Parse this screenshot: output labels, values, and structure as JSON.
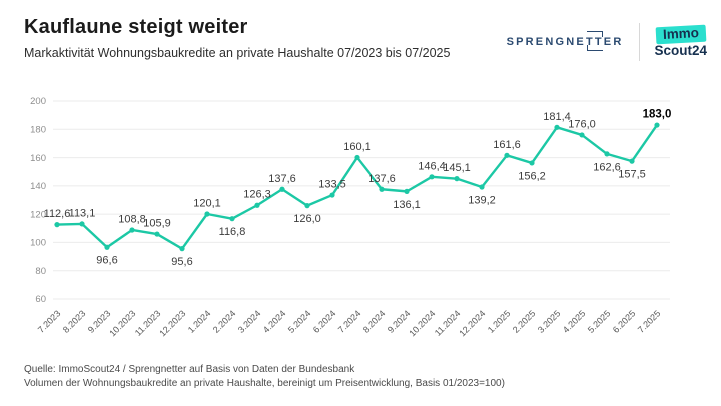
{
  "header": {
    "title": "Kauflaune steigt weiter",
    "subtitle": "Markaktivität Wohnungsbaukredite an private Haushalte 07/2023 bis 07/2025"
  },
  "logos": {
    "sprengnetter": {
      "text_before": "SPRENGNE",
      "text_tt": "TT",
      "text_after": "ER"
    },
    "immoscout": {
      "line1": "Immo",
      "line2": "Scout24"
    }
  },
  "chart_data": {
    "type": "line",
    "title": "Markaktivität Wohnungsbaukredite an private Haushalte 07/2023 bis 07/2025",
    "categories": [
      "7.2023",
      "8.2023",
      "9.2023",
      "10.2023",
      "11.2023",
      "12.2023",
      "1.2024",
      "2.2024",
      "3.2024",
      "4.2024",
      "5.2024",
      "6.2024",
      "7.2024",
      "8.2024",
      "9.2024",
      "10.2024",
      "11.2024",
      "12.2024",
      "1.2025",
      "2.2025",
      "3.2025",
      "4.2025",
      "5.2025",
      "6.2025",
      "7.2025"
    ],
    "values": [
      112.6,
      113.1,
      96.6,
      108.8,
      105.9,
      95.6,
      120.1,
      116.8,
      126.3,
      137.6,
      126.0,
      133.5,
      160.1,
      137.6,
      136.1,
      146.4,
      145.1,
      139.2,
      161.6,
      156.2,
      181.4,
      176.0,
      162.6,
      157.5,
      183.0
    ],
    "label_side": [
      "above",
      "above",
      "below",
      "above",
      "above",
      "below",
      "above",
      "below",
      "above",
      "above",
      "below",
      "above",
      "above",
      "above",
      "below",
      "above",
      "above",
      "below",
      "above",
      "below",
      "above",
      "above",
      "below",
      "below",
      "above"
    ],
    "emphasize_last": true,
    "ylim": [
      60,
      200
    ],
    "yticks": [
      200,
      180,
      160,
      140,
      120,
      100,
      80,
      60
    ],
    "grid": "horizontal",
    "legend": "none",
    "decimal_separator": ",",
    "xlabel": "",
    "ylabel": ""
  },
  "colors": {
    "line": "#1cc8a5",
    "grid": "#ebebeb",
    "ytick": "#8e8e8e",
    "xtick": "#555555",
    "value_label": "#3c3c3c",
    "value_label_emph": "#000000",
    "brand_navy": "#2b4a70",
    "immoscout_teal": "#2bdfce"
  },
  "footer": {
    "source": "Quelle: ImmoScout24 / Sprengnetter auf Basis von Daten der Bundesbank",
    "note": "Volumen der Wohnungsbaukredite an private Haushalte, bereinigt um Preisentwicklung, Basis 01/2023=100)"
  }
}
